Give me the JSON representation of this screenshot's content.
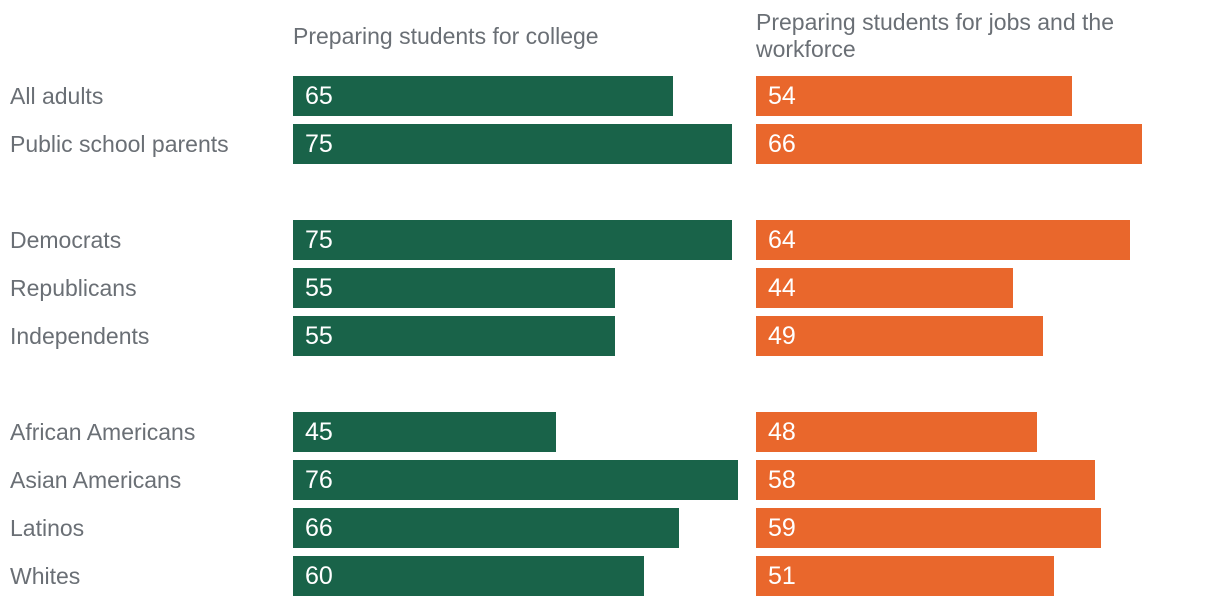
{
  "chart_data": {
    "type": "bar",
    "orientation": "horizontal",
    "value_unit": "percent",
    "grid": false,
    "axes_shown": false,
    "legend_position": "column-headers",
    "series": [
      {
        "name": "Preparing students for college",
        "color": "#196349",
        "values": [
          65,
          75,
          75,
          55,
          55,
          45,
          76,
          66,
          60
        ]
      },
      {
        "name": "Preparing students for jobs and the workforce",
        "color": "#e9672c",
        "values": [
          54,
          66,
          64,
          44,
          49,
          48,
          58,
          59,
          51
        ]
      }
    ],
    "categories": [
      "All adults",
      "Public school parents",
      "Democrats",
      "Republicans",
      "Independents",
      "African Americans",
      "Asian Americans",
      "Latinos",
      "Whites"
    ],
    "groups": [
      {
        "rows": [
          {
            "label": "All adults",
            "college": 65,
            "jobs": 54
          },
          {
            "label": "Public school parents",
            "college": 75,
            "jobs": 66
          }
        ]
      },
      {
        "rows": [
          {
            "label": "Democrats",
            "college": 75,
            "jobs": 64
          },
          {
            "label": "Republicans",
            "college": 55,
            "jobs": 44
          },
          {
            "label": "Independents",
            "college": 55,
            "jobs": 49
          }
        ]
      },
      {
        "rows": [
          {
            "label": "African Americans",
            "college": 45,
            "jobs": 48
          },
          {
            "label": "Asian Americans",
            "college": 76,
            "jobs": 58
          },
          {
            "label": "Latinos",
            "college": 66,
            "jobs": 59
          },
          {
            "label": "Whites",
            "college": 60,
            "jobs": 51
          }
        ]
      }
    ],
    "label_color": "#6a6f75",
    "value_label_color": "#ffffff"
  }
}
